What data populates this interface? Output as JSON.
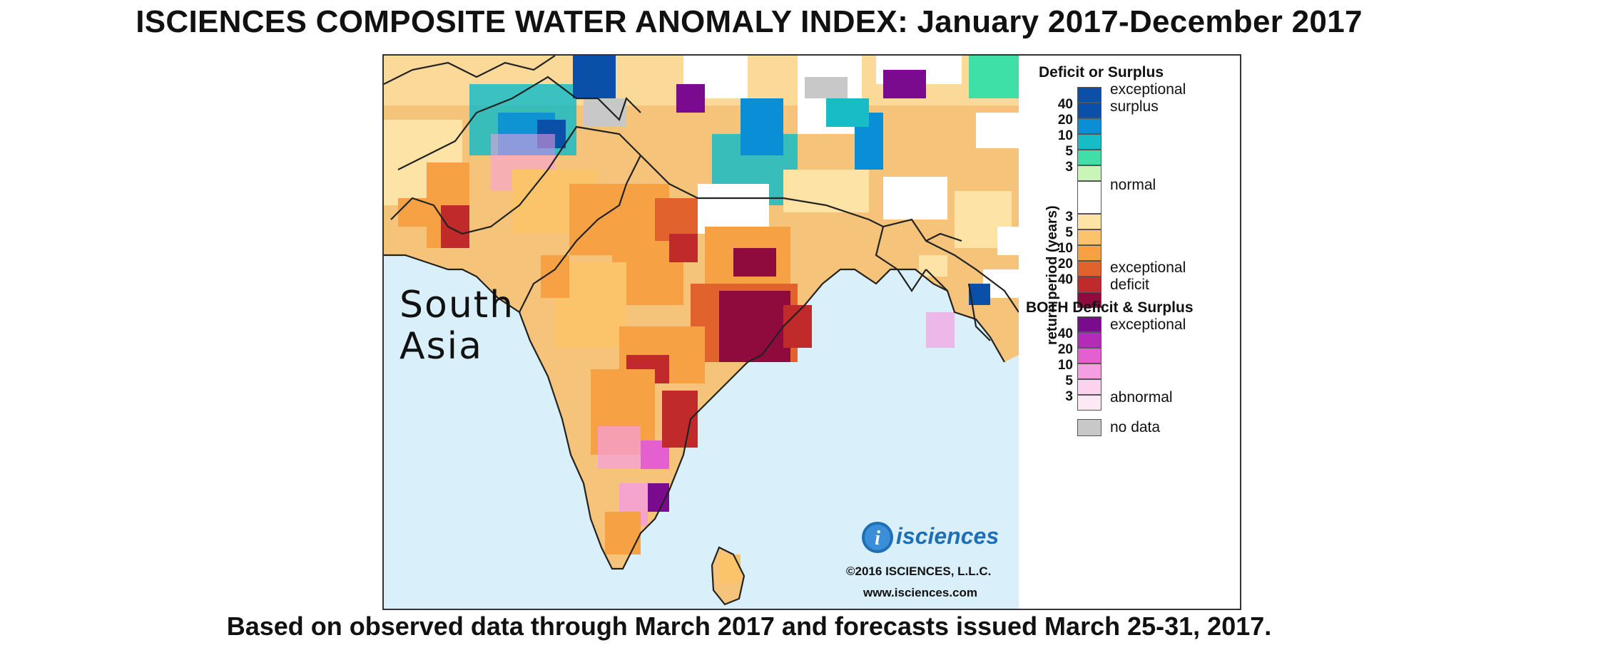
{
  "title": "ISCIENCES COMPOSITE WATER ANOMALY INDEX: January 2017-December 2017",
  "footer": "Based on observed data through March 2017 and forecasts issued March 25-31, 2017.",
  "map": {
    "region_label_line1": "South",
    "region_label_line2": "Asia",
    "logo_text": "isciences",
    "logo_glyph": "i",
    "copyright": "©2016 ISCIENCES, L.L.C.",
    "website": "www.isciences.com"
  },
  "legend": {
    "heading_deficit_surplus": "Deficit or Surplus",
    "exceptional_surplus_line1": "exceptional",
    "exceptional_surplus_line2": "surplus",
    "normal": "normal",
    "exceptional_deficit_line1": "exceptional",
    "exceptional_deficit_line2": "deficit",
    "axis_label": "return period (years)",
    "surplus_ticks": [
      "40",
      "20",
      "10",
      "5",
      "3"
    ],
    "deficit_ticks": [
      "3",
      "5",
      "10",
      "20",
      "40"
    ],
    "heading_both": "BOTH Deficit & Surplus",
    "both_exceptional": "exceptional",
    "both_abnormal": "abnormal",
    "both_ticks": [
      "40",
      "20",
      "10",
      "5",
      "3"
    ],
    "no_data": "no data"
  },
  "colors": {
    "surplus": [
      "#0a4fa8",
      "#0a8fd6",
      "#17bcc7",
      "#3ee0a8",
      "#c9f5b8"
    ],
    "normal": "#ffffff",
    "deficit": [
      "#fde3a6",
      "#fbc36a",
      "#f7a145",
      "#e2622d",
      "#c12a2a",
      "#8f0a3d"
    ],
    "both": [
      "#7a0a8e",
      "#b52ab8",
      "#e45fd0",
      "#f59ee2",
      "#fbd3ef"
    ],
    "no_data": "#c8c8c8",
    "ocean": "#d9f0fa"
  }
}
